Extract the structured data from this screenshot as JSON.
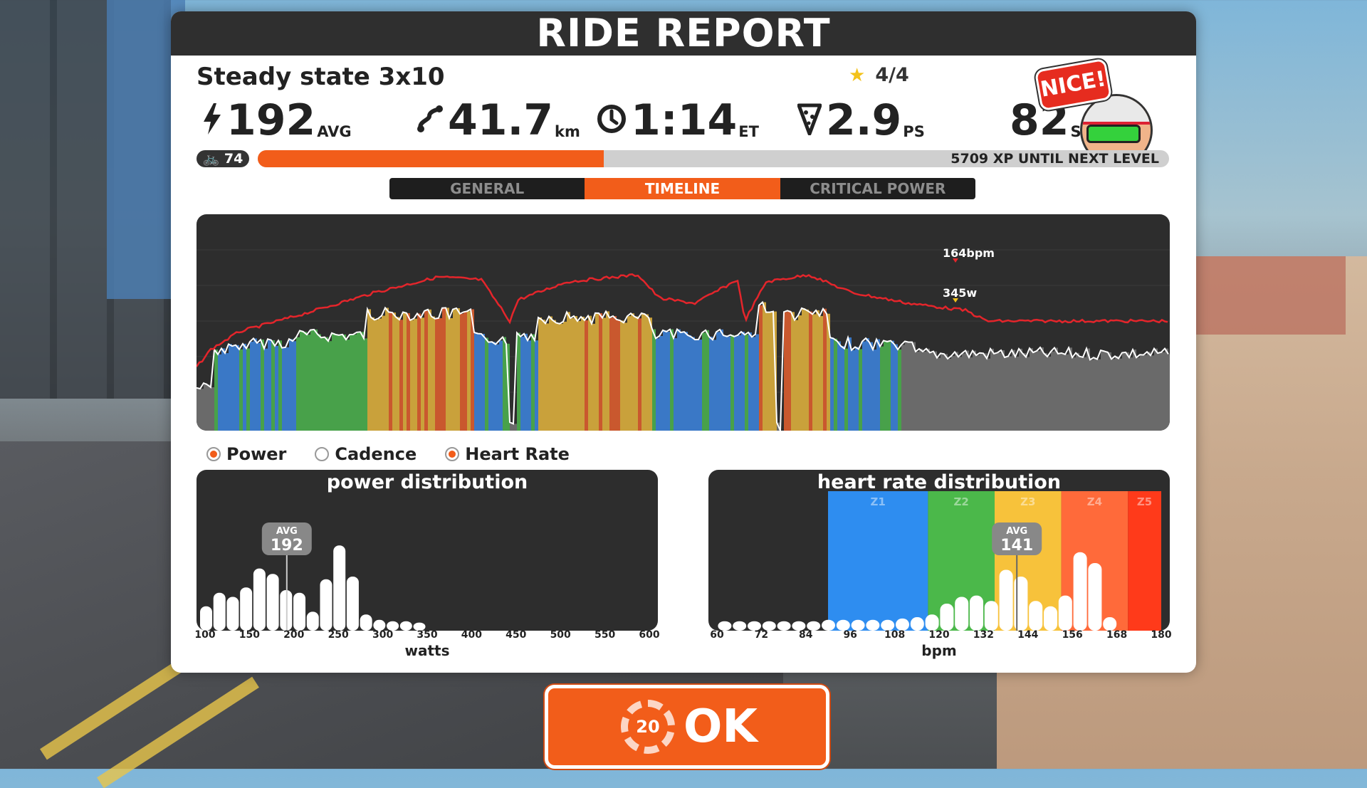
{
  "header": {
    "title": "RIDE REPORT"
  },
  "workout": {
    "name": "Steady state 3x10",
    "stars": "4/4"
  },
  "stats": {
    "power": {
      "value": "192",
      "unit": "AVG"
    },
    "distance": {
      "value": "41.7",
      "unit": "km"
    },
    "time": {
      "value": "1:14",
      "unit": "ET"
    },
    "pizza": {
      "value": "2.9",
      "unit": "PS"
    },
    "sp": {
      "value": "82",
      "unit": "SP"
    }
  },
  "badge": {
    "text": "NICE!"
  },
  "level": {
    "value": "74",
    "xp_text": "5709 XP UNTIL NEXT LEVEL",
    "progress": 0.38
  },
  "tabs": [
    {
      "label": "GENERAL",
      "active": false
    },
    {
      "label": "TIMELINE",
      "active": true
    },
    {
      "label": "CRITICAL POWER",
      "active": false
    }
  ],
  "timeline": {
    "peak_hr_label": "164bpm",
    "peak_power_label": "345w",
    "colors": {
      "power_line": "#ffffff",
      "hr_line": "#e4252b",
      "gray": "#6a6a6a",
      "blue": "#3a78c6",
      "green": "#48a14a",
      "gold": "#c9a13b"
    }
  },
  "legend": [
    {
      "label": "Power",
      "on": true
    },
    {
      "label": "Cadence",
      "on": false
    },
    {
      "label": "Heart Rate",
      "on": true
    }
  ],
  "power_dist": {
    "title": "power distribution",
    "axis_title": "watts",
    "ticks": [
      "100",
      "150",
      "200",
      "250",
      "300",
      "350",
      "400",
      "450",
      "500",
      "550",
      "600"
    ],
    "avg_label": "AVG",
    "avg_value": "192",
    "avg_watts": 192,
    "bars": [
      {
        "w": 100,
        "h": 0.18
      },
      {
        "w": 115,
        "h": 0.28
      },
      {
        "w": 130,
        "h": 0.25
      },
      {
        "w": 145,
        "h": 0.32
      },
      {
        "w": 160,
        "h": 0.46
      },
      {
        "w": 175,
        "h": 0.42
      },
      {
        "w": 190,
        "h": 0.3
      },
      {
        "w": 205,
        "h": 0.28
      },
      {
        "w": 220,
        "h": 0.14
      },
      {
        "w": 235,
        "h": 0.38
      },
      {
        "w": 250,
        "h": 0.63
      },
      {
        "w": 265,
        "h": 0.4
      },
      {
        "w": 280,
        "h": 0.12
      },
      {
        "w": 295,
        "h": 0.08
      },
      {
        "w": 310,
        "h": 0.07
      },
      {
        "w": 325,
        "h": 0.07
      },
      {
        "w": 340,
        "h": 0.06
      }
    ]
  },
  "hr_dist": {
    "title": "heart rate distribution",
    "axis_title": "bpm",
    "ticks": [
      "60",
      "72",
      "84",
      "96",
      "108",
      "120",
      "132",
      "144",
      "156",
      "168",
      "180"
    ],
    "zones": [
      {
        "label": "Z1",
        "from": 90,
        "to": 117,
        "color": "#2e8df0"
      },
      {
        "label": "Z2",
        "from": 117,
        "to": 135,
        "color": "#4bb84a"
      },
      {
        "label": "Z3",
        "from": 135,
        "to": 153,
        "color": "#f7c23b"
      },
      {
        "label": "Z4",
        "from": 153,
        "to": 171,
        "color": "#ff6a3a"
      },
      {
        "label": "Z5",
        "from": 171,
        "to": 180,
        "color": "#ff3a1a"
      }
    ],
    "avg_label": "AVG",
    "avg_value": "141",
    "avg_bpm": 141,
    "bars": [
      {
        "b": 62,
        "h": 0.07
      },
      {
        "b": 66,
        "h": 0.07
      },
      {
        "b": 70,
        "h": 0.07
      },
      {
        "b": 74,
        "h": 0.07
      },
      {
        "b": 78,
        "h": 0.07
      },
      {
        "b": 82,
        "h": 0.07
      },
      {
        "b": 86,
        "h": 0.07
      },
      {
        "b": 90,
        "h": 0.08
      },
      {
        "b": 94,
        "h": 0.08
      },
      {
        "b": 98,
        "h": 0.08
      },
      {
        "b": 102,
        "h": 0.08
      },
      {
        "b": 106,
        "h": 0.08
      },
      {
        "b": 110,
        "h": 0.09
      },
      {
        "b": 114,
        "h": 0.1
      },
      {
        "b": 118,
        "h": 0.12
      },
      {
        "b": 122,
        "h": 0.2
      },
      {
        "b": 126,
        "h": 0.25
      },
      {
        "b": 130,
        "h": 0.26
      },
      {
        "b": 134,
        "h": 0.22
      },
      {
        "b": 138,
        "h": 0.45
      },
      {
        "b": 142,
        "h": 0.4
      },
      {
        "b": 146,
        "h": 0.22
      },
      {
        "b": 150,
        "h": 0.18
      },
      {
        "b": 154,
        "h": 0.26
      },
      {
        "b": 158,
        "h": 0.58
      },
      {
        "b": 162,
        "h": 0.5
      },
      {
        "b": 166,
        "h": 0.1
      }
    ]
  },
  "ok_button": {
    "label": "OK",
    "countdown": "20"
  }
}
